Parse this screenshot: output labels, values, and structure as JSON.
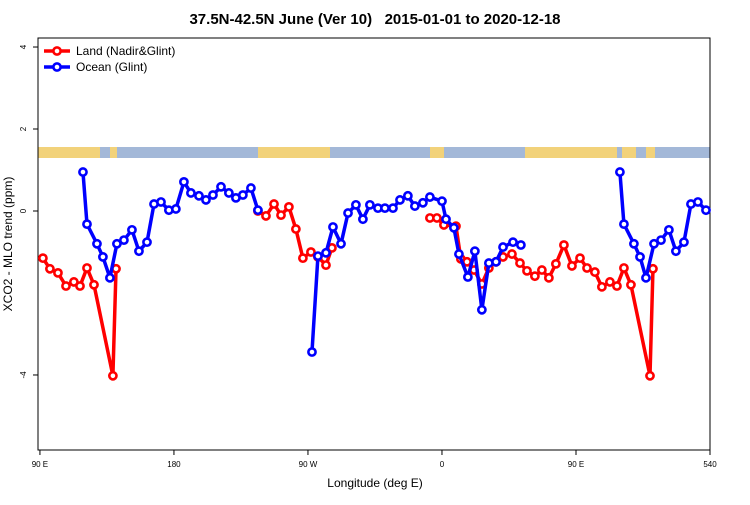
{
  "chart_data": {
    "type": "line",
    "title": "37.5N-42.5N June (Ver 10)   2015-01-01 to 2020-12-18",
    "x_label": "Longitude (deg E)",
    "y_label": "XCO2 - MLO trend (ppm)",
    "xlim": [
      88.7,
      540
    ],
    "ylim": [
      -5.83,
      4.22
    ],
    "xticks": [
      {
        "value": 90,
        "label": "90 E"
      },
      180,
      {
        "value": 270,
        "label": "90 W"
      },
      {
        "value": 360,
        "label": "0"
      },
      {
        "value": 450,
        "label": "90 E"
      },
      540
    ],
    "yticks": [
      -4,
      0,
      2,
      4
    ],
    "legend": "top-left",
    "series": [
      {
        "name": "Land (Nadir&Glint)",
        "color": "#ff0000",
        "x": [
          92.0,
          96.7,
          102.1,
          107.5,
          112.8,
          116.9,
          121.6,
          126.3,
          139.0,
          141.1,
          190,
          236.4,
          241.8,
          247.2,
          251.9,
          257.2,
          261.9,
          266.6,
          272.0,
          276.7,
          282.1,
          286.1,
          320,
          351.9,
          356.6,
          361.3,
          369.4,
          372.7,
          376.8,
          381.5,
          386.8,
          391.5,
          396.3,
          401.0,
          407.0,
          412.4,
          417.1,
          422.4,
          427.1,
          431.8,
          436.5,
          441.9,
          447.3,
          452.7,
          457.4,
          462.7,
          467.4,
          472.8,
          477.5,
          482.2,
          486.9,
          499.7,
          501.7
        ],
        "values": [
          -1.15,
          -1.41,
          -1.51,
          -1.83,
          -1.73,
          -1.83,
          -1.39,
          -1.8,
          -4.02,
          -1.41,
          null,
          0.0,
          -0.12,
          0.17,
          -0.1,
          0.1,
          -0.44,
          -1.15,
          -1.0,
          -1.12,
          -1.32,
          -0.9,
          null,
          -0.17,
          -0.17,
          -0.34,
          -0.37,
          -1.17,
          -1.24,
          -1.44,
          -1.78,
          -1.39,
          -1.24,
          -1.12,
          -1.05,
          -1.27,
          -1.46,
          -1.59,
          -1.44,
          -1.63,
          -1.29,
          -0.83,
          -1.34,
          -1.15,
          -1.39,
          -1.49,
          -1.85,
          -1.73,
          -1.83,
          -1.39,
          -1.8,
          -4.02,
          -1.41
        ]
      },
      {
        "name": "Ocean (Glint)",
        "color": "#0000ff",
        "x": [
          118.9,
          121.6,
          128.3,
          132.3,
          137.0,
          141.7,
          146.4,
          151.8,
          156.5,
          161.9,
          166.6,
          171.3,
          176.6,
          181.3,
          186.7,
          191.4,
          196.8,
          201.5,
          206.2,
          211.6,
          216.9,
          221.6,
          226.3,
          231.7,
          236.4,
          260,
          272.7,
          276.7,
          282.1,
          286.8,
          292.2,
          296.9,
          302.2,
          306.9,
          311.6,
          317.0,
          321.7,
          327.1,
          331.8,
          337.1,
          341.8,
          347.2,
          351.9,
          360.0,
          362.7,
          368.0,
          371.4,
          377.4,
          382.1,
          386.8,
          391.5,
          396.3,
          401.0,
          407.7,
          413.0,
          470,
          479.5,
          482.2,
          488.9,
          493.0,
          497.0,
          502.4,
          507.1,
          512.4,
          517.1,
          522.5,
          527.2,
          531.9,
          537.3
        ],
        "values": [
          0.95,
          -0.32,
          -0.8,
          -1.12,
          -1.63,
          -0.8,
          -0.71,
          -0.46,
          -0.98,
          -0.76,
          0.17,
          0.22,
          0.02,
          0.05,
          0.71,
          0.44,
          0.37,
          0.27,
          0.39,
          0.59,
          0.44,
          0.32,
          0.39,
          0.56,
          0.02,
          null,
          -3.44,
          -1.1,
          -1.02,
          -0.39,
          -0.8,
          -0.05,
          0.15,
          -0.2,
          0.15,
          0.07,
          0.07,
          0.07,
          0.27,
          0.37,
          0.12,
          0.2,
          0.34,
          0.24,
          -0.2,
          -0.41,
          -1.05,
          -1.61,
          -0.98,
          -2.41,
          -1.27,
          -1.24,
          -0.88,
          -0.76,
          -0.83,
          null,
          0.95,
          -0.32,
          -0.8,
          -1.12,
          -1.63,
          -0.8,
          -0.71,
          -0.46,
          -0.98,
          -0.76,
          0.17,
          0.22,
          0.02
        ]
      }
    ]
  }
}
